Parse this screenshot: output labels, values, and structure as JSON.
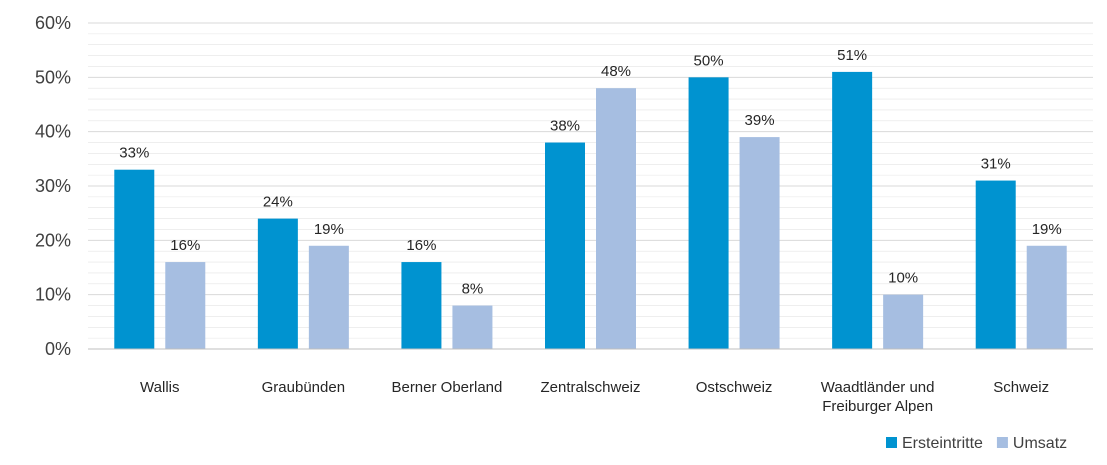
{
  "chart_data": {
    "type": "bar",
    "categories": [
      [
        "Wallis"
      ],
      [
        "Graubünden"
      ],
      [
        "Berner Oberland"
      ],
      [
        "Zentralschweiz"
      ],
      [
        "Ostschweiz"
      ],
      [
        "Waadtländer und",
        "Freiburger Alpen"
      ],
      [
        "Schweiz"
      ]
    ],
    "series": [
      {
        "name": "Ersteintritte",
        "color": "#0093D0",
        "values": [
          33,
          24,
          16,
          38,
          50,
          51,
          31
        ]
      },
      {
        "name": "Umsatz",
        "color": "#A6BEE1",
        "values": [
          16,
          19,
          8,
          48,
          39,
          10,
          19
        ]
      }
    ],
    "data_labels": [
      [
        "33%",
        "24%",
        "16%",
        "38%",
        "50%",
        "51%",
        "31%"
      ],
      [
        "16%",
        "19%",
        "8%",
        "48%",
        "39%",
        "10%",
        "19%"
      ]
    ],
    "y_ticks": [
      "0%",
      "10%",
      "20%",
      "30%",
      "40%",
      "50%",
      "60%"
    ],
    "ylim": [
      0,
      60
    ],
    "grid": true,
    "legend_position": "bottom-right",
    "grid_color": "#D9D9D9",
    "axis_color": "#BFBFBF"
  }
}
